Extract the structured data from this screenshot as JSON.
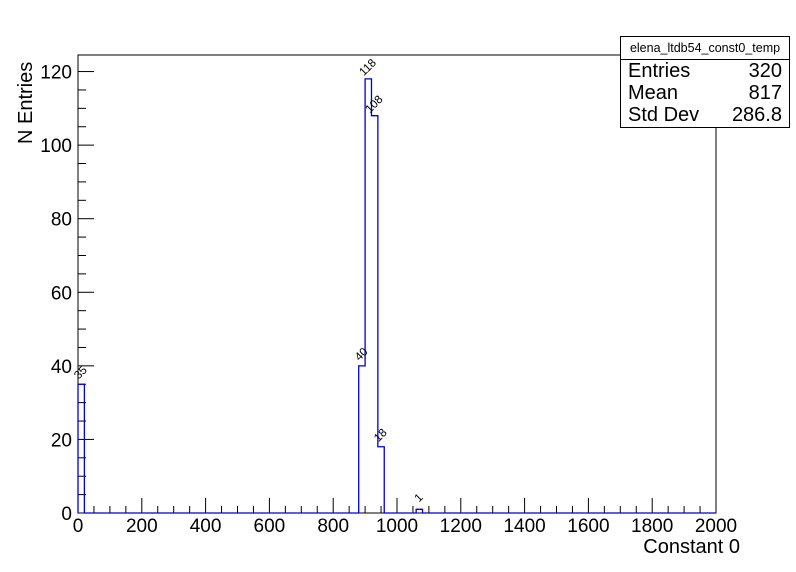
{
  "window": {
    "background_color": "#ffffff",
    "frame_color": "#000000"
  },
  "stats_box": {
    "title": "elena_ltdb54_const0_temp",
    "rows": [
      {
        "label": "Entries",
        "value": "320"
      },
      {
        "label": "Mean",
        "value": "817"
      },
      {
        "label": "Std Dev",
        "value": "286.8"
      }
    ]
  },
  "chart_data": {
    "type": "bar",
    "subtype": "histogram-step-outline",
    "histogram_name": "elena_ltdb54_const0_temp",
    "title": "",
    "xlabel": "Constant 0",
    "ylabel": "N Entries",
    "xlim": [
      0,
      2000
    ],
    "ylim": [
      0,
      124.5
    ],
    "x_major_tick_step": 200,
    "x_minor_tick_step": 50,
    "y_major_tick_step": 20,
    "y_minor_tick_step": 5,
    "x_major_tick_labels": [
      "0",
      "200",
      "400",
      "600",
      "800",
      "1000",
      "1200",
      "1400",
      "1600",
      "1800",
      "2000"
    ],
    "y_major_tick_labels": [
      "0",
      "20",
      "40",
      "60",
      "80",
      "100",
      "120"
    ],
    "grid": false,
    "legend": false,
    "bin_width": 20,
    "bins": [
      {
        "x_low": 0,
        "x_high": 20,
        "count": 35
      },
      {
        "x_low": 880,
        "x_high": 900,
        "count": 40
      },
      {
        "x_low": 900,
        "x_high": 920,
        "count": 118
      },
      {
        "x_low": 920,
        "x_high": 940,
        "count": 108
      },
      {
        "x_low": 940,
        "x_high": 960,
        "count": 18
      },
      {
        "x_low": 1060,
        "x_high": 1080,
        "count": 1
      }
    ],
    "bar_value_labels": [
      "35",
      "40",
      "118",
      "108",
      "18",
      "1"
    ],
    "bar_label_angle_deg": 45,
    "line_color": "#0000cc",
    "stats": {
      "entries": 320,
      "mean": 817,
      "std_dev": 286.8
    }
  }
}
